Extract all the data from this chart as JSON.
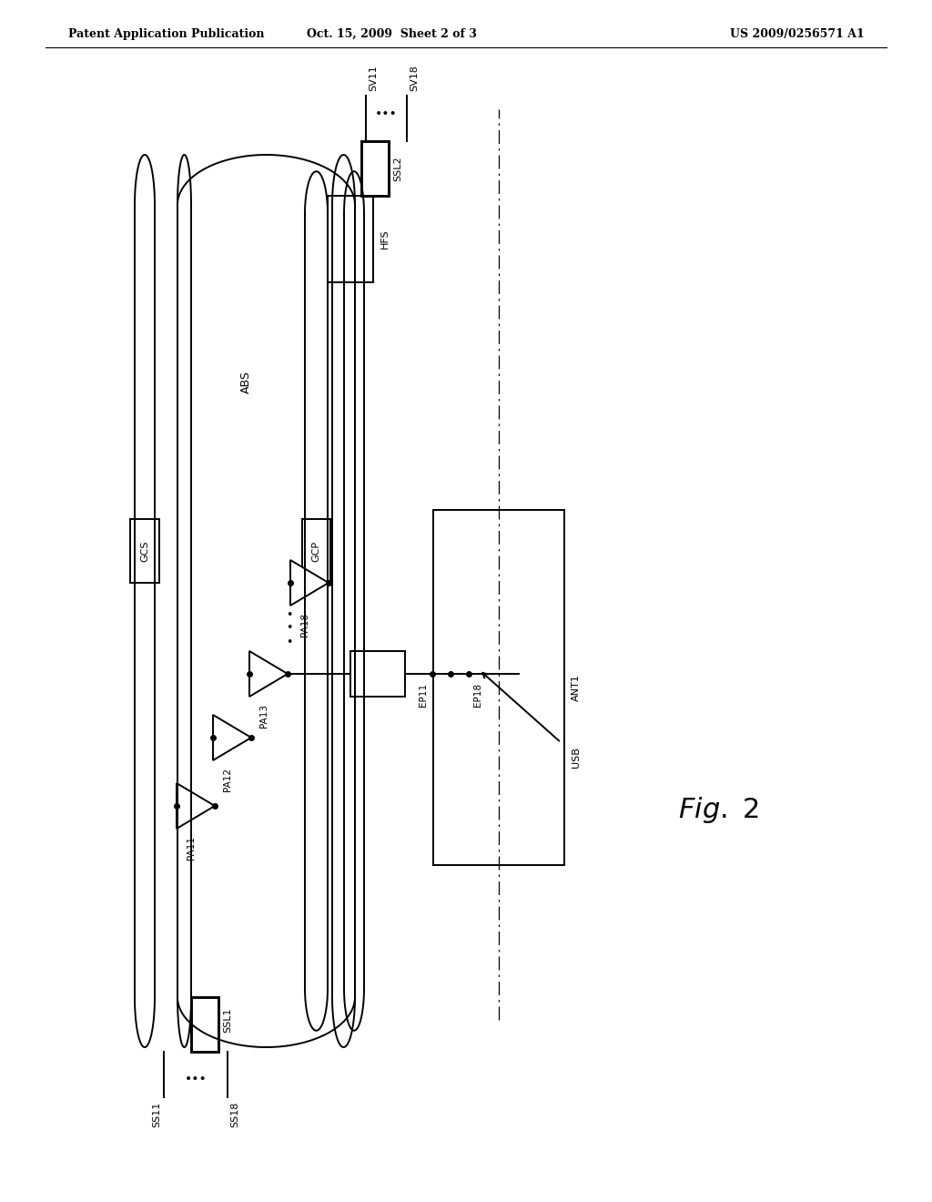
{
  "bg_color": "#ffffff",
  "header_left": "Patent Application Publication",
  "header_center": "Oct. 15, 2009  Sheet 2 of 3",
  "header_right": "US 2009/0256571 A1",
  "fig_label": "Fig. 2"
}
